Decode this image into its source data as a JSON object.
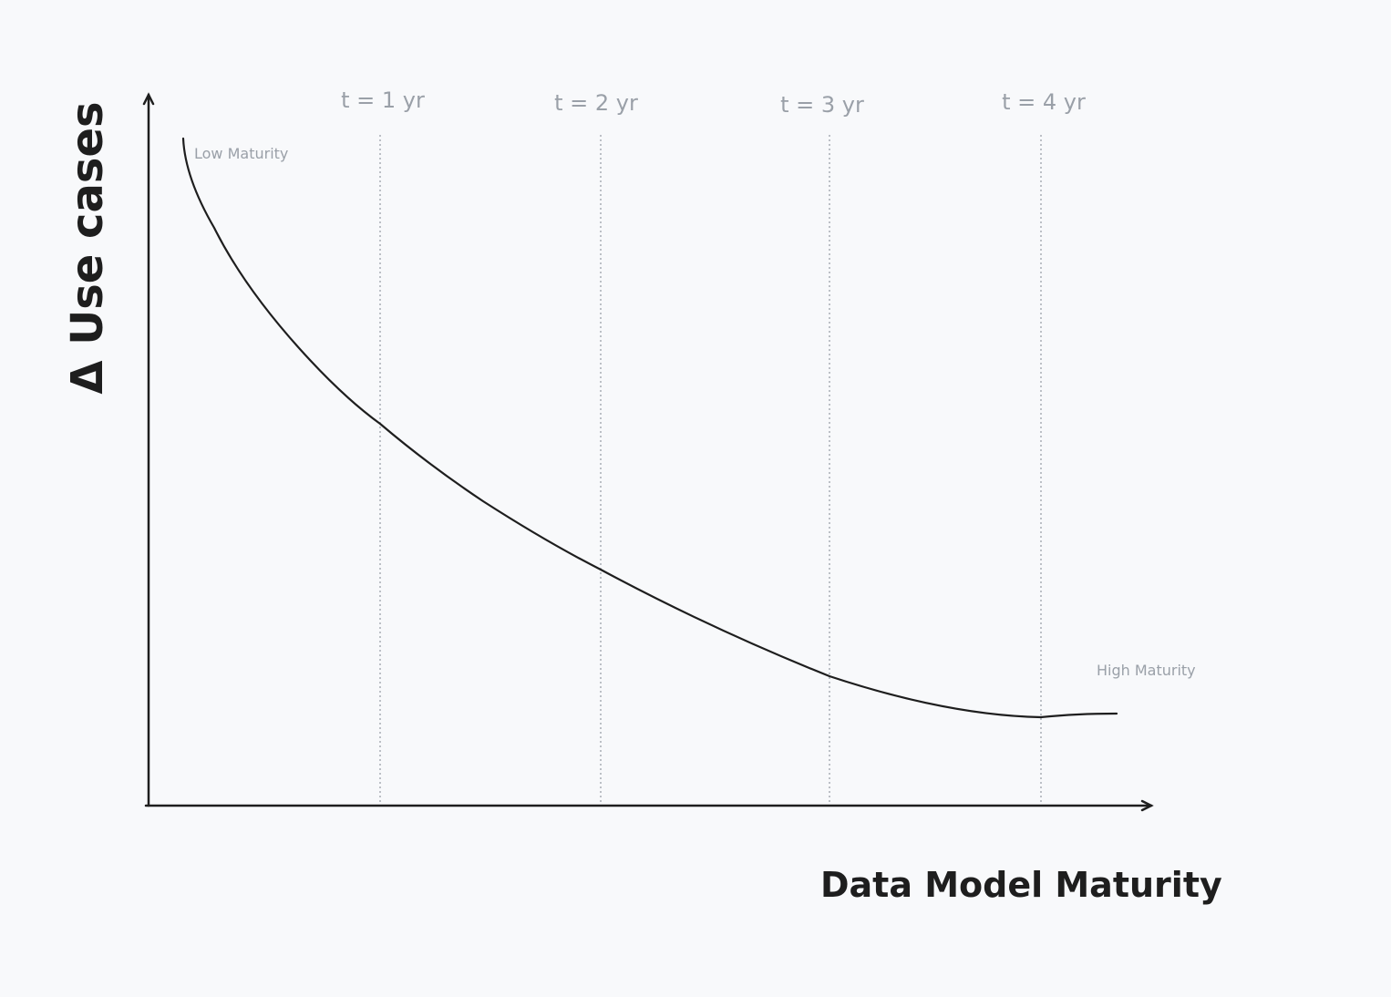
{
  "axes": {
    "y_title": "Δ Use cases",
    "x_title": "Data Model Maturity"
  },
  "markers": [
    "t = 1 yr",
    "t = 2 yr",
    "t = 3 yr",
    "t = 4 yr"
  ],
  "annotations": {
    "start": "Low Maturity",
    "end": "High Maturity"
  }
}
